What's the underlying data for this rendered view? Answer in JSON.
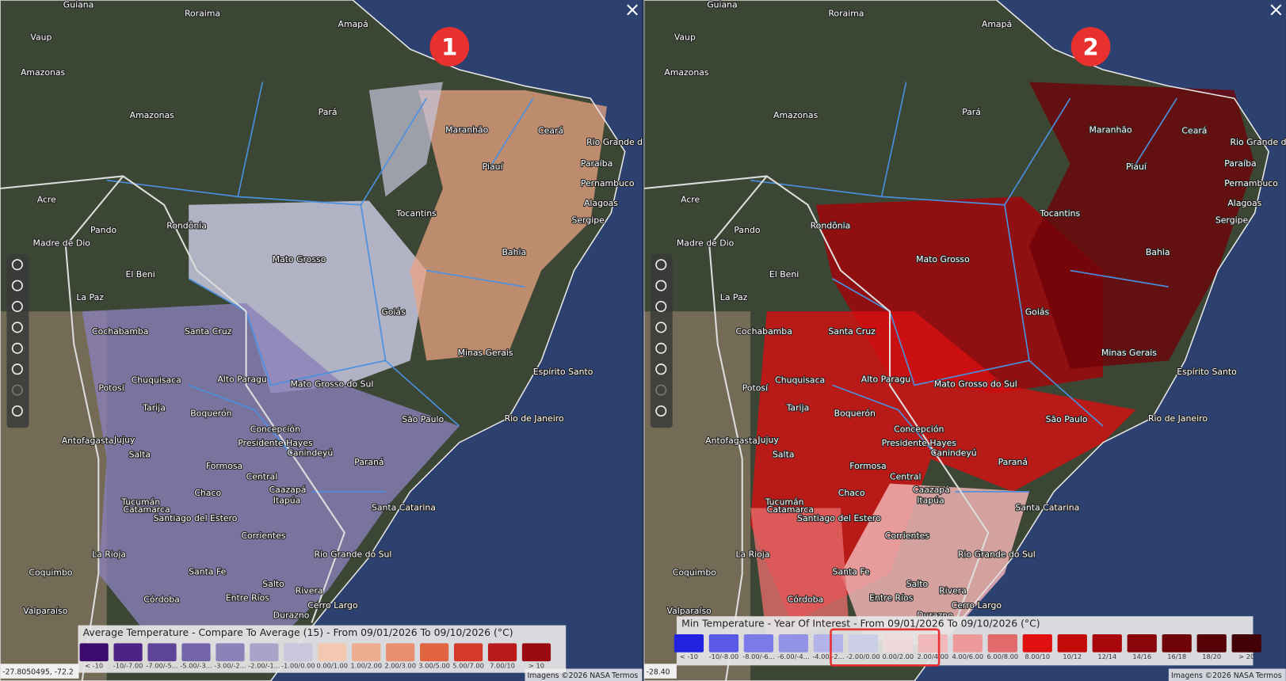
{
  "map_labels": [
    "Guiana",
    "Roraima",
    "Amapá",
    "Vaup",
    "Amazonas",
    "Amazonas",
    "Pará",
    "Maranhão",
    "Ceará",
    "Rio Grande do Norte",
    "Piauí",
    "Paraíba",
    "Acre",
    "Pernambuco",
    "Alagoas",
    "Tocantins",
    "Sergipe",
    "Rondônia",
    "Pando",
    "Madre de Dio",
    "Bahia",
    "Mato Grosso",
    "El Beni",
    "La Paz",
    "Goiás",
    "Cochabamba",
    "Santa Cruz",
    "Minas Gerais",
    "Chuquisaca",
    "Alto Paragu",
    "Espírito Santo",
    "Mato Grosso do Sul",
    "Potosí",
    "Tarija",
    "Boquerón",
    "São Paulo",
    "Rio de Janeiro",
    "Antofagasta",
    "Jujuy",
    "Concepción",
    "Salta",
    "Presidente Hayes",
    "Canindeyú",
    "Paraná",
    "Formosa",
    "Central",
    "Caazapá",
    "Itapúa",
    "Chaco",
    "Tucumán",
    "Catamarca",
    "Santiago del Estero",
    "Santa Catarina",
    "Corrientes",
    "Rio Grande do Sul",
    "La Rioja",
    "Santa Fe",
    "Entre Ríos",
    "Salto",
    "Rivera",
    "Córdoba",
    "Durazno",
    "Cerro Largo",
    "Coquimbo",
    "Valparaíso"
  ],
  "panels": [
    {
      "badge": "1",
      "legend": {
        "title": "Average Temperature - Compare To Average (15) - From 09/01/2026 To 09/10/2026 (°C)",
        "classes": [
          {
            "label": "< -10",
            "color": "#3d0a6e"
          },
          {
            "label": "-10/-7.00",
            "color": "#4b2485"
          },
          {
            "label": "-7.00/-5...",
            "color": "#5f4597"
          },
          {
            "label": "-5.00/-3...",
            "color": "#7565a8"
          },
          {
            "label": "-3.00/-2...",
            "color": "#8b82b8"
          },
          {
            "label": "-2.00/-1...",
            "color": "#a8a3c8"
          },
          {
            "label": "-1.00/0.00",
            "color": "#c9c7dc"
          },
          {
            "label": "0.00/1.00",
            "color": "#f2c9b0"
          },
          {
            "label": "1.00/2.00",
            "color": "#eeac90"
          },
          {
            "label": "2.00/3.00",
            "color": "#e98f6f"
          },
          {
            "label": "3.00/5.00",
            "color": "#e0643f"
          },
          {
            "label": "5.00/7.00",
            "color": "#d53a2a"
          },
          {
            "label": "7.00/10",
            "color": "#bb1a1a"
          },
          {
            "label": "> 10",
            "color": "#9b0a10"
          }
        ]
      },
      "coordinates": "-27.8050495, -72.2",
      "attribution": "Imagens ©2026 NASA",
      "terms": "Termos"
    },
    {
      "badge": "2",
      "legend": {
        "title": "Min Temperature - Year Of Interest - From 09/01/2026 To 09/10/2026 (°C)",
        "classes": [
          {
            "label": "< -10",
            "color": "#2121e0"
          },
          {
            "label": "-10/-8.00",
            "color": "#5a5ae6"
          },
          {
            "label": "-8.00/-6...",
            "color": "#7a7ae8"
          },
          {
            "label": "-6.00/-4...",
            "color": "#9393e6"
          },
          {
            "label": "-4.00/-2...",
            "color": "#b3b3ea"
          },
          {
            "label": "-2.00/0.00",
            "color": "#cccde6"
          },
          {
            "label": "0.00/2.00",
            "color": "#eed9dc"
          },
          {
            "label": "2.00/4.00",
            "color": "#f0b8b8"
          },
          {
            "label": "4.00/6.00",
            "color": "#ec9a9a"
          },
          {
            "label": "6.00/8.00",
            "color": "#e36a6a"
          },
          {
            "label": "8.00/10",
            "color": "#e01010"
          },
          {
            "label": "10/12",
            "color": "#c40909"
          },
          {
            "label": "12/14",
            "color": "#a8070c"
          },
          {
            "label": "14/16",
            "color": "#8a050a"
          },
          {
            "label": "16/18",
            "color": "#6e0308"
          },
          {
            "label": "18/20",
            "color": "#560206"
          },
          {
            "label": "> 20",
            "color": "#420106"
          }
        ]
      },
      "coordinates": "-28.40",
      "attribution": "Imagens ©2026 NASA",
      "terms": "Termos"
    }
  ]
}
